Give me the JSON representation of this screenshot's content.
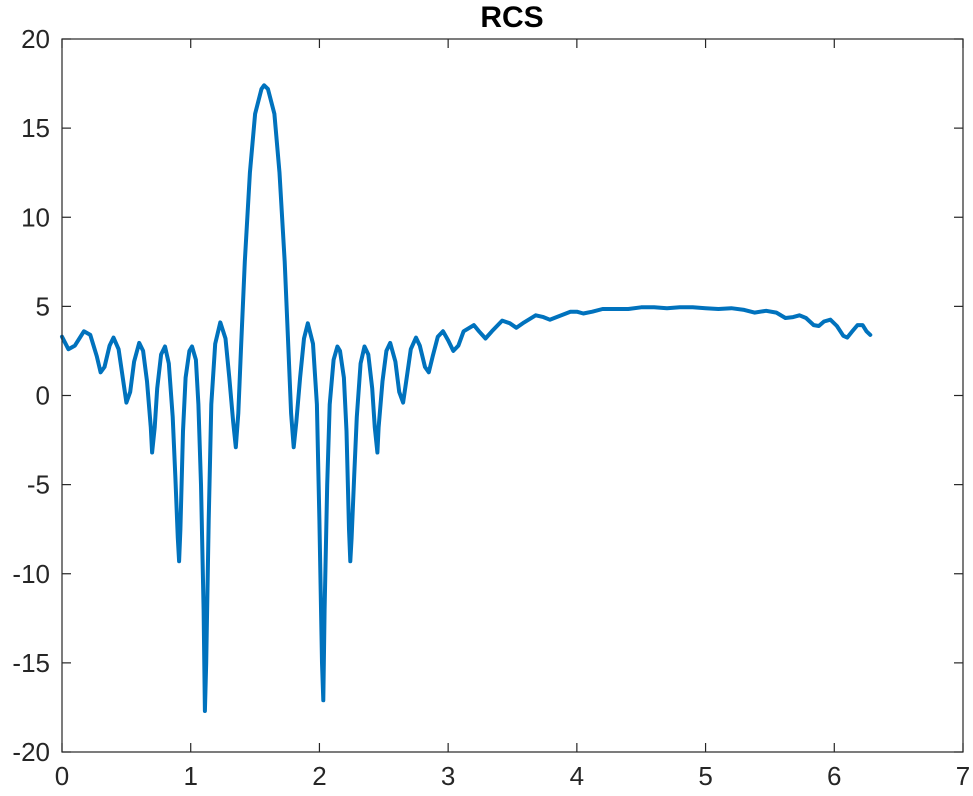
{
  "chart_data": {
    "type": "line",
    "title": "RCS",
    "xlabel": "",
    "ylabel": "",
    "xlim": [
      0,
      7
    ],
    "ylim": [
      -20,
      20
    ],
    "xticks": [
      0,
      1,
      2,
      3,
      4,
      5,
      6,
      7
    ],
    "yticks": [
      -20,
      -15,
      -10,
      -5,
      0,
      5,
      10,
      15,
      20
    ],
    "xtick_labels": [
      "0",
      "1",
      "2",
      "3",
      "4",
      "5",
      "6",
      "7"
    ],
    "ytick_labels": [
      "-20",
      "-15",
      "-10",
      "-5",
      "0",
      "5",
      "10",
      "15",
      "20"
    ],
    "grid": false,
    "box": true,
    "colors": {
      "line": "#0072BD",
      "axes": "#262626",
      "background": "#ffffff"
    },
    "series": [
      {
        "points": [
          [
            0.0,
            3.3
          ],
          [
            0.05,
            2.6
          ],
          [
            0.1,
            2.8
          ],
          [
            0.17,
            3.6
          ],
          [
            0.22,
            3.4
          ],
          [
            0.27,
            2.2
          ],
          [
            0.3,
            1.3
          ],
          [
            0.33,
            1.6
          ],
          [
            0.37,
            2.8
          ],
          [
            0.4,
            3.25
          ],
          [
            0.44,
            2.6
          ],
          [
            0.48,
            0.6
          ],
          [
            0.5,
            -0.4
          ],
          [
            0.53,
            0.2
          ],
          [
            0.56,
            1.9
          ],
          [
            0.6,
            2.95
          ],
          [
            0.63,
            2.5
          ],
          [
            0.66,
            0.8
          ],
          [
            0.69,
            -1.8
          ],
          [
            0.7,
            -3.2
          ],
          [
            0.72,
            -1.8
          ],
          [
            0.74,
            0.4
          ],
          [
            0.77,
            2.3
          ],
          [
            0.8,
            2.75
          ],
          [
            0.83,
            1.8
          ],
          [
            0.86,
            -1.2
          ],
          [
            0.88,
            -4.5
          ],
          [
            0.9,
            -8.0
          ],
          [
            0.91,
            -9.3
          ],
          [
            0.92,
            -7.5
          ],
          [
            0.94,
            -2.0
          ],
          [
            0.96,
            1.0
          ],
          [
            0.99,
            2.5
          ],
          [
            1.01,
            2.75
          ],
          [
            1.04,
            2.0
          ],
          [
            1.06,
            -0.5
          ],
          [
            1.08,
            -5.0
          ],
          [
            1.1,
            -12.0
          ],
          [
            1.11,
            -17.7
          ],
          [
            1.12,
            -15.0
          ],
          [
            1.14,
            -7.0
          ],
          [
            1.16,
            -0.5
          ],
          [
            1.19,
            2.9
          ],
          [
            1.23,
            4.1
          ],
          [
            1.27,
            3.2
          ],
          [
            1.3,
            1.0
          ],
          [
            1.33,
            -1.5
          ],
          [
            1.35,
            -2.9
          ],
          [
            1.37,
            -1.0
          ],
          [
            1.39,
            2.5
          ],
          [
            1.42,
            7.5
          ],
          [
            1.46,
            12.5
          ],
          [
            1.5,
            15.8
          ],
          [
            1.55,
            17.2
          ],
          [
            1.57,
            17.4
          ],
          [
            1.6,
            17.2
          ],
          [
            1.65,
            15.8
          ],
          [
            1.69,
            12.5
          ],
          [
            1.73,
            7.5
          ],
          [
            1.76,
            2.5
          ],
          [
            1.78,
            -1.0
          ],
          [
            1.8,
            -2.9
          ],
          [
            1.82,
            -1.5
          ],
          [
            1.85,
            1.0
          ],
          [
            1.88,
            3.2
          ],
          [
            1.91,
            4.05
          ],
          [
            1.95,
            2.9
          ],
          [
            1.98,
            -0.5
          ],
          [
            2.0,
            -7.0
          ],
          [
            2.02,
            -15.0
          ],
          [
            2.03,
            -17.1
          ],
          [
            2.04,
            -12.0
          ],
          [
            2.06,
            -5.0
          ],
          [
            2.08,
            -0.5
          ],
          [
            2.11,
            2.0
          ],
          [
            2.14,
            2.75
          ],
          [
            2.16,
            2.5
          ],
          [
            2.19,
            1.0
          ],
          [
            2.21,
            -2.0
          ],
          [
            2.23,
            -7.5
          ],
          [
            2.24,
            -9.3
          ],
          [
            2.25,
            -8.0
          ],
          [
            2.27,
            -4.5
          ],
          [
            2.29,
            -1.2
          ],
          [
            2.32,
            1.8
          ],
          [
            2.35,
            2.75
          ],
          [
            2.38,
            2.3
          ],
          [
            2.41,
            0.4
          ],
          [
            2.43,
            -1.8
          ],
          [
            2.45,
            -3.2
          ],
          [
            2.46,
            -1.8
          ],
          [
            2.49,
            0.8
          ],
          [
            2.52,
            2.5
          ],
          [
            2.55,
            2.95
          ],
          [
            2.59,
            1.9
          ],
          [
            2.62,
            0.2
          ],
          [
            2.65,
            -0.4
          ],
          [
            2.67,
            0.6
          ],
          [
            2.71,
            2.6
          ],
          [
            2.75,
            3.25
          ],
          [
            2.78,
            2.8
          ],
          [
            2.82,
            1.6
          ],
          [
            2.85,
            1.3
          ],
          [
            2.88,
            2.2
          ],
          [
            2.92,
            3.3
          ],
          [
            2.96,
            3.6
          ],
          [
            3.0,
            3.1
          ],
          [
            3.04,
            2.5
          ],
          [
            3.08,
            2.8
          ],
          [
            3.12,
            3.6
          ],
          [
            3.2,
            3.95
          ],
          [
            3.24,
            3.6
          ],
          [
            3.29,
            3.2
          ],
          [
            3.34,
            3.6
          ],
          [
            3.42,
            4.2
          ],
          [
            3.48,
            4.05
          ],
          [
            3.53,
            3.8
          ],
          [
            3.59,
            4.1
          ],
          [
            3.68,
            4.5
          ],
          [
            3.74,
            4.4
          ],
          [
            3.79,
            4.25
          ],
          [
            3.86,
            4.45
          ],
          [
            3.95,
            4.7
          ],
          [
            4.0,
            4.7
          ],
          [
            4.05,
            4.6
          ],
          [
            4.12,
            4.7
          ],
          [
            4.2,
            4.85
          ],
          [
            4.3,
            4.85
          ],
          [
            4.4,
            4.85
          ],
          [
            4.5,
            4.95
          ],
          [
            4.6,
            4.95
          ],
          [
            4.7,
            4.9
          ],
          [
            4.8,
            4.95
          ],
          [
            4.9,
            4.95
          ],
          [
            5.0,
            4.9
          ],
          [
            5.1,
            4.85
          ],
          [
            5.2,
            4.9
          ],
          [
            5.3,
            4.8
          ],
          [
            5.38,
            4.65
          ],
          [
            5.47,
            4.75
          ],
          [
            5.55,
            4.65
          ],
          [
            5.62,
            4.35
          ],
          [
            5.68,
            4.4
          ],
          [
            5.73,
            4.5
          ],
          [
            5.78,
            4.35
          ],
          [
            5.84,
            3.95
          ],
          [
            5.88,
            3.9
          ],
          [
            5.92,
            4.15
          ],
          [
            5.97,
            4.25
          ],
          [
            6.02,
            3.9
          ],
          [
            6.07,
            3.35
          ],
          [
            6.1,
            3.25
          ],
          [
            6.14,
            3.6
          ],
          [
            6.18,
            3.95
          ],
          [
            6.22,
            3.95
          ],
          [
            6.25,
            3.6
          ],
          [
            6.28,
            3.4
          ]
        ]
      }
    ]
  }
}
